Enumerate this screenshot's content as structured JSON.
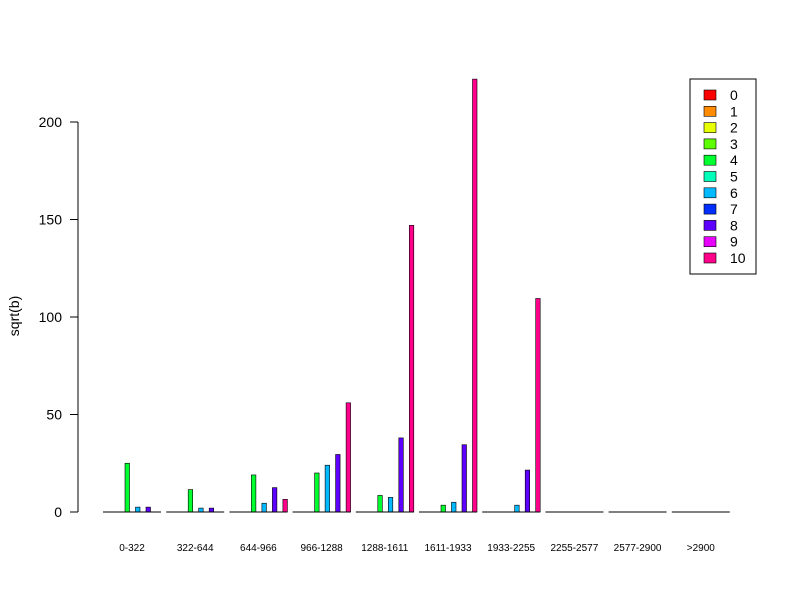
{
  "chart_data": {
    "type": "bar",
    "ylabel": "sqrt(b)",
    "xlabel": "",
    "ylim": [
      0,
      230
    ],
    "yticks": [
      0,
      50,
      100,
      150,
      200
    ],
    "categories": [
      "0-322",
      "322-644",
      "644-966",
      "966-1288",
      "1288-1611",
      "1611-1933",
      "1933-2255",
      "2255-2577",
      "2577-2900",
      ">2900"
    ],
    "legend_position": "top-right",
    "series": [
      {
        "name": "0",
        "color": "#FF0000",
        "values": [
          0,
          0,
          0,
          0,
          0,
          0,
          0,
          0,
          0,
          0
        ]
      },
      {
        "name": "1",
        "color": "#FF8B00",
        "values": [
          0,
          0,
          0,
          0,
          0,
          0,
          0,
          0,
          0,
          0
        ]
      },
      {
        "name": "2",
        "color": "#E8FF00",
        "values": [
          0,
          0,
          0,
          0,
          0,
          0,
          0,
          0,
          0,
          0
        ]
      },
      {
        "name": "3",
        "color": "#5DFF00",
        "values": [
          0,
          0,
          0,
          0,
          0,
          0,
          0,
          0,
          0,
          0
        ]
      },
      {
        "name": "4",
        "color": "#00FF2E",
        "values": [
          25,
          11.5,
          19,
          20,
          8.5,
          3.5,
          0,
          0,
          0,
          0
        ]
      },
      {
        "name": "5",
        "color": "#00FFB9",
        "values": [
          0,
          0,
          0,
          0,
          0,
          0,
          0,
          0,
          0,
          0
        ]
      },
      {
        "name": "6",
        "color": "#00B9FF",
        "values": [
          2.5,
          2,
          4.5,
          24,
          7.5,
          5,
          3.5,
          0,
          0,
          0
        ]
      },
      {
        "name": "7",
        "color": "#002EFF",
        "values": [
          0,
          0,
          0,
          0,
          0,
          0,
          0,
          0,
          0,
          0
        ]
      },
      {
        "name": "8",
        "color": "#5D00FF",
        "values": [
          2.5,
          2,
          12.5,
          29.5,
          38,
          34.5,
          21.5,
          0,
          0,
          0
        ]
      },
      {
        "name": "9",
        "color": "#E800FF",
        "values": [
          0,
          0,
          0,
          0,
          0,
          0,
          0,
          0,
          0,
          0
        ]
      },
      {
        "name": "10",
        "color": "#FF008B",
        "values": [
          0,
          0,
          6.5,
          56,
          147,
          222,
          109.5,
          0,
          0,
          0
        ]
      }
    ]
  }
}
